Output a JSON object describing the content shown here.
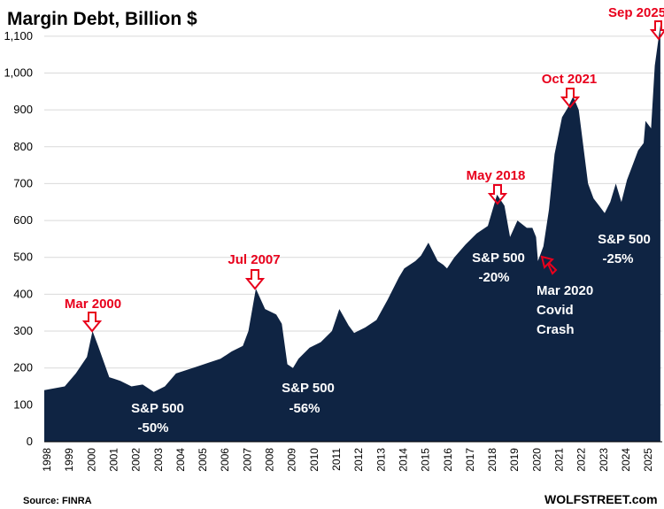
{
  "chart_data": {
    "type": "area",
    "title": "Margin Debt, Billion $",
    "xlabel": "",
    "ylabel": "",
    "ylim": [
      0,
      1150
    ],
    "yticks": [
      "0",
      "100",
      "200",
      "300",
      "400",
      "500",
      "600",
      "700",
      "800",
      "900",
      "1,000",
      "1,100"
    ],
    "xticks": [
      "1998",
      "1999",
      "2000",
      "2001",
      "2002",
      "2003",
      "2004",
      "2005",
      "2006",
      "2007",
      "2008",
      "2009",
      "2010",
      "2011",
      "2012",
      "2013",
      "2014",
      "2015",
      "2016",
      "2017",
      "2018",
      "2019",
      "2020",
      "2021",
      "2022",
      "2023",
      "2024",
      "2025"
    ],
    "grid": "horizontal",
    "fill_color": "#0f2443",
    "annotation_color": "#e8001c",
    "series": [
      {
        "values_note": "",
        "x": [
          "1998-01",
          "1998-12",
          "1999-06",
          "1999-12",
          "2000-03",
          "2000-06",
          "2000-12",
          "2001-06",
          "2001-12",
          "2002-06",
          "2002-12",
          "2003-06",
          "2003-12",
          "2004-06",
          "2004-12",
          "2005-06",
          "2005-12",
          "2006-06",
          "2006-12",
          "2007-03",
          "2007-07",
          "2007-12",
          "2008-06",
          "2008-09",
          "2008-12",
          "2009-03",
          "2009-06",
          "2009-12",
          "2010-06",
          "2010-12",
          "2011-04",
          "2011-09",
          "2011-12",
          "2012-06",
          "2012-12",
          "2013-06",
          "2013-12",
          "2014-03",
          "2014-09",
          "2014-12",
          "2015-04",
          "2015-09",
          "2015-12",
          "2016-02",
          "2016-06",
          "2016-12",
          "2017-06",
          "2017-12",
          "2018-05",
          "2018-09",
          "2018-12",
          "2019-04",
          "2019-09",
          "2019-12",
          "2020-02",
          "2020-03",
          "2020-06",
          "2020-09",
          "2020-12",
          "2021-04",
          "2021-07",
          "2021-10",
          "2022-01",
          "2022-06",
          "2022-09",
          "2022-12",
          "2023-03",
          "2023-06",
          "2023-09",
          "2023-12",
          "2024-03",
          "2024-06",
          "2024-09",
          "2024-12",
          "2025-01",
          "2025-04",
          "2025-06",
          "2025-09"
        ],
        "values": [
          140,
          150,
          185,
          230,
          300,
          260,
          175,
          165,
          150,
          155,
          135,
          150,
          185,
          195,
          205,
          215,
          225,
          245,
          260,
          300,
          415,
          360,
          345,
          320,
          210,
          200,
          225,
          255,
          270,
          300,
          360,
          315,
          295,
          310,
          330,
          385,
          445,
          470,
          490,
          505,
          540,
          490,
          480,
          470,
          500,
          535,
          565,
          585,
          670,
          640,
          555,
          600,
          580,
          580,
          555,
          490,
          530,
          630,
          780,
          880,
          905,
          936,
          900,
          700,
          660,
          640,
          620,
          650,
          700,
          650,
          710,
          750,
          790,
          810,
          870,
          850,
          1020,
          1130
        ]
      }
    ],
    "annotations": {
      "red": [
        {
          "label": "Mar 2000",
          "x": "2000-03",
          "y": 300
        },
        {
          "label": "Jul 2007",
          "x": "2007-07",
          "y": 415
        },
        {
          "label": "May 2018",
          "x": "2018-05",
          "y": 670
        },
        {
          "label": "Oct 2021",
          "x": "2021-10",
          "y": 936
        },
        {
          "label": "Sep 2025",
          "x": "2025-09",
          "y": 1130
        }
      ],
      "white": [
        {
          "line1": "S&P 500",
          "line2": "-50%"
        },
        {
          "line1": "S&P 500",
          "line2": "-56%"
        },
        {
          "line1": "S&P 500",
          "line2": "-20%"
        },
        {
          "line1": "S&P 500",
          "line2": "-25%"
        }
      ],
      "covid": [
        "Mar 2020",
        "Covid",
        "Crash"
      ]
    }
  },
  "footer": {
    "source": "Source: FINRA",
    "brand": "WOLFSTREET.com"
  }
}
